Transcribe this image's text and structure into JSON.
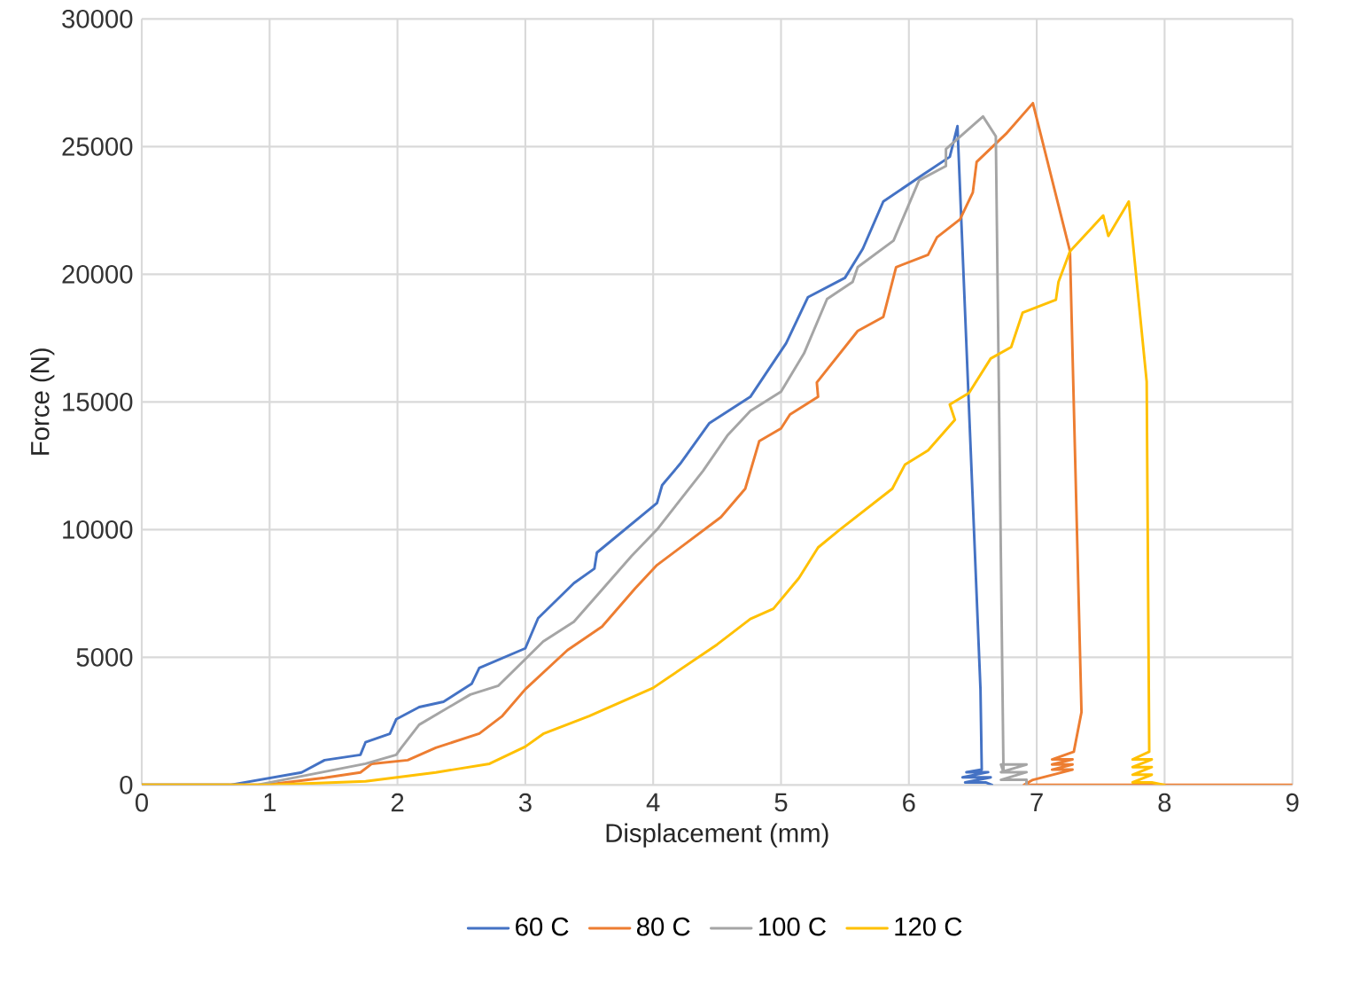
{
  "chart_data": {
    "type": "line",
    "xlabel": "Displacement (mm)",
    "ylabel": "Force (N)",
    "xlim": [
      0,
      9
    ],
    "ylim": [
      0,
      30000
    ],
    "xticks": [
      0,
      1,
      2,
      3,
      4,
      5,
      6,
      7,
      8,
      9
    ],
    "yticks": [
      0,
      5000,
      10000,
      15000,
      20000,
      25000,
      30000
    ],
    "grid": true,
    "legend": "bottom",
    "series": [
      {
        "name": "60 C",
        "color": "#4472c4",
        "x": [
          0,
          0.69,
          1.25,
          1.43,
          1.71,
          1.75,
          1.94,
          1.99,
          2.17,
          2.36,
          2.58,
          2.64,
          3.0,
          3.1,
          3.38,
          3.54,
          3.56,
          4.03,
          4.07,
          4.21,
          4.44,
          4.76,
          4.88,
          5.04,
          5.21,
          5.5,
          5.64,
          5.8,
          6.11,
          6.32,
          6.38,
          6.56,
          6.57,
          6.45,
          6.62,
          6.42,
          6.64,
          6.44,
          6.6,
          6.65
        ],
        "values": [
          0,
          0,
          490,
          970,
          1180,
          1670,
          2000,
          2570,
          3050,
          3260,
          3960,
          4580,
          5350,
          6530,
          7900,
          8470,
          9100,
          11040,
          11740,
          12570,
          14170,
          15200,
          16100,
          17300,
          19100,
          19860,
          21000,
          22850,
          23900,
          24600,
          25800,
          3750,
          600,
          500,
          500,
          300,
          300,
          100,
          100,
          0
        ]
      },
      {
        "name": "80 C",
        "color": "#ed7d31",
        "x": [
          0,
          0.97,
          1.43,
          1.71,
          1.8,
          2.08,
          2.3,
          2.64,
          2.82,
          3.0,
          3.33,
          3.6,
          3.86,
          4.03,
          4.53,
          4.72,
          4.83,
          5.0,
          5.07,
          5.29,
          5.28,
          5.6,
          5.8,
          5.9,
          6.15,
          6.22,
          6.4,
          6.5,
          6.53,
          6.76,
          6.97,
          7.26,
          7.35,
          7.29,
          7.12,
          7.28,
          7.12,
          7.28,
          7.12,
          7.28,
          6.97,
          6.9,
          9
        ],
        "values": [
          0,
          0,
          280,
          490,
          830,
          970,
          1460,
          2010,
          2700,
          3750,
          5280,
          6200,
          7700,
          8610,
          10490,
          11600,
          13470,
          13960,
          14510,
          15200,
          15760,
          17780,
          18330,
          20280,
          20760,
          21450,
          22150,
          23200,
          24400,
          25500,
          26700,
          20900,
          2850,
          1300,
          1000,
          1000,
          800,
          800,
          600,
          600,
          200,
          0,
          0
        ]
      },
      {
        "name": "100 C",
        "color": "#a5a5a5",
        "x": [
          0,
          0.9,
          1.75,
          1.99,
          2.03,
          2.17,
          2.57,
          2.79,
          3.14,
          3.38,
          3.61,
          3.83,
          4.03,
          4.39,
          4.58,
          4.76,
          5.0,
          5.18,
          5.36,
          5.56,
          5.6,
          5.88,
          6.08,
          6.29,
          6.29,
          6.58,
          6.68,
          6.74,
          6.72,
          6.92,
          6.72,
          6.92,
          6.72,
          6.92,
          6.92
        ],
        "values": [
          0,
          0,
          830,
          1180,
          1460,
          2360,
          3540,
          3890,
          5620,
          6390,
          7700,
          8960,
          10000,
          12300,
          13680,
          14650,
          15400,
          16900,
          19030,
          19700,
          20280,
          21320,
          23680,
          24240,
          24900,
          26180,
          25400,
          500,
          800,
          800,
          500,
          500,
          200,
          200,
          0
        ]
      },
      {
        "name": "120 C",
        "color": "#ffc000",
        "x": [
          0,
          1.0,
          1.75,
          2.3,
          2.72,
          3.0,
          3.14,
          3.5,
          4.0,
          4.5,
          4.76,
          4.94,
          5.14,
          5.29,
          5.46,
          5.87,
          5.97,
          6.15,
          6.36,
          6.32,
          6.47,
          6.64,
          6.8,
          6.89,
          7.15,
          7.17,
          7.26,
          7.52,
          7.56,
          7.72,
          7.86,
          7.88,
          7.75,
          7.9,
          7.75,
          7.9,
          7.75,
          7.9,
          7.75,
          7.9,
          8.0
        ],
        "values": [
          0,
          0,
          140,
          490,
          830,
          1500,
          2000,
          2700,
          3800,
          5500,
          6500,
          6900,
          8100,
          9300,
          10000,
          11600,
          12550,
          13100,
          14300,
          14900,
          15350,
          16700,
          17150,
          18500,
          19000,
          19700,
          20900,
          22300,
          21500,
          22850,
          15800,
          1300,
          1000,
          1000,
          700,
          700,
          400,
          400,
          100,
          100,
          0
        ]
      }
    ]
  }
}
